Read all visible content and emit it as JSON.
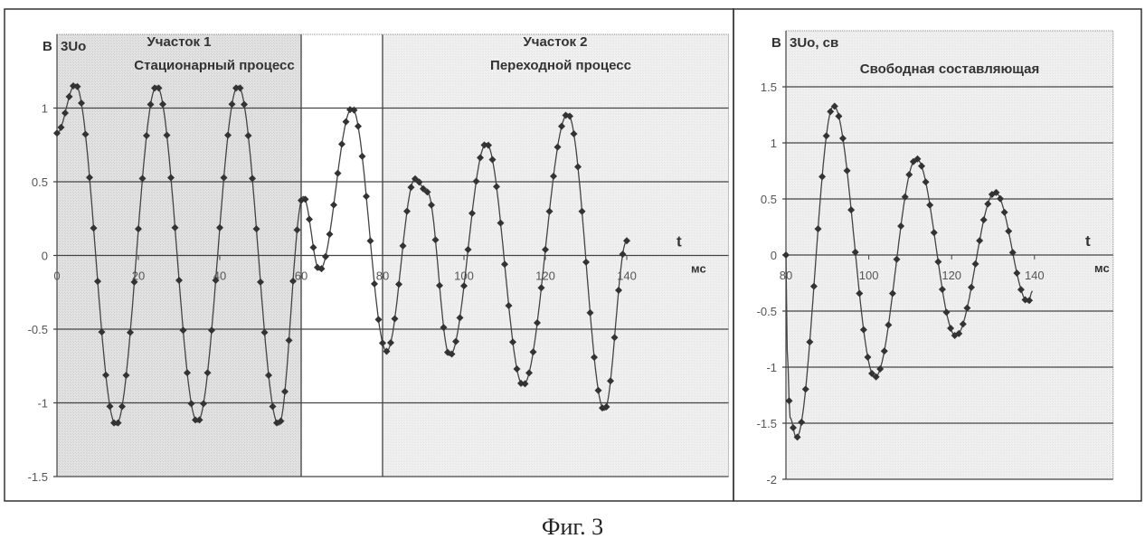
{
  "caption": "Фиг. 3",
  "chart_data": [
    {
      "type": "line",
      "unit_label": "В",
      "series_name": "3Uo",
      "xlabel": "t",
      "xunit": "мс",
      "xlim": [
        0,
        165
      ],
      "ylim": [
        -1.5,
        1.5
      ],
      "xticks": [
        0,
        20,
        40,
        60,
        80,
        100,
        120,
        140
      ],
      "yticks": [
        -1.5,
        -1,
        -0.5,
        0,
        0.5,
        1
      ],
      "grid": "horizontal",
      "regions": [
        {
          "name": "Участок 1",
          "subtitle": "Стационарный процесс",
          "x": [
            0,
            60
          ],
          "shade": "#d6d6d6"
        },
        {
          "name": "",
          "subtitle": "",
          "x": [
            60,
            80
          ],
          "shade": "#ffffff"
        },
        {
          "name": "Участок 2",
          "subtitle": "Переходной процесс",
          "x": [
            80,
            165
          ],
          "shade": "#e6e6e6"
        }
      ],
      "extrema": {
        "x": [
          0,
          4.5,
          14.5,
          24.5,
          34.5,
          44.5,
          54.5,
          60.5,
          64.5,
          72.5,
          81,
          88,
          91,
          96.5,
          105.5,
          114.5,
          125.5,
          134.5,
          140
        ],
        "y": [
          0.83,
          1.16,
          -1.15,
          1.15,
          -1.13,
          1.15,
          -1.15,
          0.4,
          -0.1,
          1.0,
          -0.65,
          0.52,
          0.43,
          -0.68,
          0.76,
          -0.88,
          0.96,
          -1.05,
          0.1
        ]
      }
    },
    {
      "type": "line",
      "unit_label": "В",
      "series_name": "3Uo, св",
      "title": "Свободная составляющая",
      "xlabel": "t",
      "xunit": "мс",
      "xlim": [
        80,
        159
      ],
      "ylim": [
        -2,
        2
      ],
      "xticks": [
        80,
        100,
        120,
        140
      ],
      "yticks": [
        -2,
        -1.5,
        -1,
        -0.5,
        0,
        0.5,
        1,
        1.5
      ],
      "grid": "horizontal",
      "extrema": {
        "x": [
          80,
          80.3,
          81,
          82.5,
          91.5,
          101.5,
          111.5,
          121,
          130.5,
          138.5,
          139.5
        ],
        "y": [
          0,
          -0.85,
          -1.45,
          -1.63,
          1.33,
          -1.09,
          0.86,
          -0.72,
          0.56,
          -0.42,
          -0.32
        ]
      }
    }
  ]
}
